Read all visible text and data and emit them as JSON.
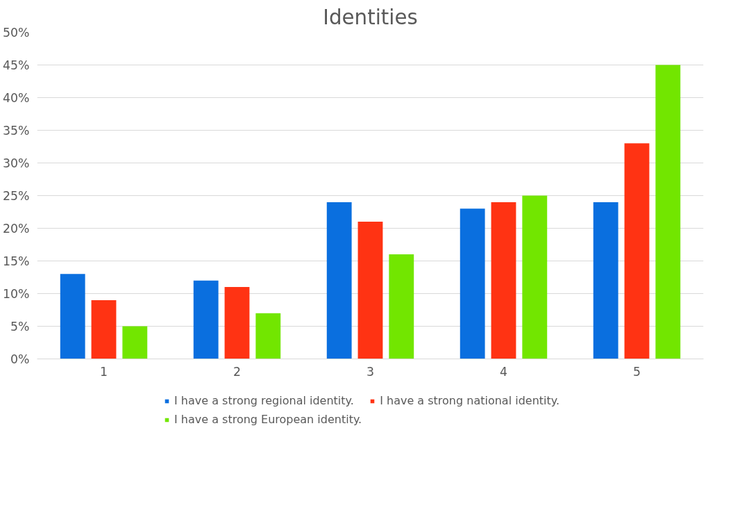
{
  "chart_data": {
    "type": "bar",
    "title": "Identities",
    "categories": [
      "1",
      "2",
      "3",
      "4",
      "5"
    ],
    "series": [
      {
        "name": "I have a strong regional identity.",
        "color": "#0a6fdf",
        "values": [
          13,
          12,
          24,
          23,
          24
        ]
      },
      {
        "name": "I have a strong national identity.",
        "color": "#ff3313",
        "values": [
          9,
          11,
          21,
          24,
          33
        ]
      },
      {
        "name": "I have a strong European identity.",
        "color": "#72e600",
        "values": [
          5,
          7,
          16,
          25,
          45
        ]
      }
    ],
    "ylim": [
      0,
      50
    ],
    "yticks": [
      {
        "value": 0,
        "label": "0%"
      },
      {
        "value": 5,
        "label": "5%"
      },
      {
        "value": 10,
        "label": "10%"
      },
      {
        "value": 15,
        "label": "15%"
      },
      {
        "value": 20,
        "label": "20%"
      },
      {
        "value": 25,
        "label": "25%"
      },
      {
        "value": 30,
        "label": "30%"
      },
      {
        "value": 35,
        "label": "35%"
      },
      {
        "value": 40,
        "label": "40%"
      },
      {
        "value": 45,
        "label": "45%"
      },
      {
        "value": 50,
        "label": "50%"
      }
    ],
    "grid": "y",
    "legend": "bottom"
  }
}
